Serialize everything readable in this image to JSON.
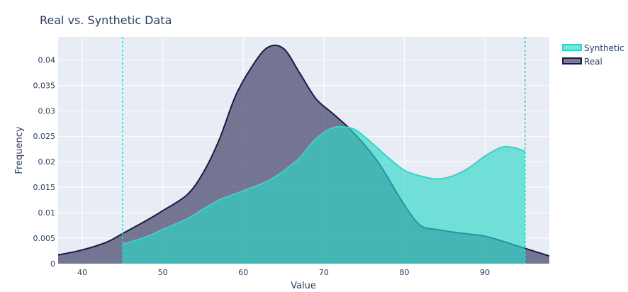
{
  "chart_data": {
    "type": "area",
    "title": "Real vs. Synthetic Data",
    "xlabel": "Value",
    "ylabel": "Frequency",
    "xlim": [
      37,
      98
    ],
    "ylim": [
      0,
      0.0445
    ],
    "x_ticks": [
      40,
      50,
      60,
      70,
      80,
      90
    ],
    "y_ticks": [
      0,
      0.005,
      0.01,
      0.015,
      0.02,
      0.025,
      0.03,
      0.035,
      0.04
    ],
    "y_tick_labels": [
      "0",
      "0.005",
      "0.01",
      "0.015",
      "0.02",
      "0.025",
      "0.03",
      "0.035",
      "0.04"
    ],
    "grid": true,
    "legend_position": "top-right",
    "vlines": [
      {
        "x": 45,
        "color": "#2ed8c8",
        "style": "dashed"
      },
      {
        "x": 95,
        "color": "#2ed8c8",
        "style": "dashed"
      }
    ],
    "series": [
      {
        "name": "Real",
        "color": "#1a1a46",
        "fill": "#4e4c72",
        "fill_opacity": 0.75,
        "x": [
          37,
          40,
          43,
          45,
          48,
          50,
          53,
          55,
          57,
          59,
          61,
          63,
          65,
          67,
          69,
          71,
          73,
          75,
          77,
          80,
          82,
          84,
          86,
          88,
          90,
          92,
          94,
          96,
          98
        ],
        "y": [
          0.0017,
          0.0027,
          0.0042,
          0.0059,
          0.0085,
          0.0104,
          0.0135,
          0.0178,
          0.0243,
          0.0328,
          0.0385,
          0.0424,
          0.0422,
          0.0374,
          0.0324,
          0.0296,
          0.0268,
          0.0234,
          0.0193,
          0.0115,
          0.0075,
          0.0067,
          0.0062,
          0.0058,
          0.0054,
          0.0045,
          0.0035,
          0.0025,
          0.0015
        ]
      },
      {
        "name": "Synthetic",
        "color": "#2ed8c8",
        "fill": "#2ed8c8",
        "fill_opacity": 0.65,
        "x": [
          45,
          48,
          50,
          53,
          55,
          57,
          59,
          61,
          63,
          65,
          67,
          69,
          71,
          72.5,
          74,
          76,
          78,
          80,
          82,
          84,
          86,
          88,
          90,
          92,
          93.5,
          95
        ],
        "y": [
          0.0038,
          0.0053,
          0.0067,
          0.0088,
          0.0107,
          0.0125,
          0.0137,
          0.0149,
          0.0162,
          0.0182,
          0.0208,
          0.0245,
          0.0266,
          0.0268,
          0.0262,
          0.0236,
          0.0208,
          0.0183,
          0.0172,
          0.0166,
          0.0172,
          0.0188,
          0.0211,
          0.0228,
          0.0228,
          0.022
        ]
      }
    ]
  }
}
